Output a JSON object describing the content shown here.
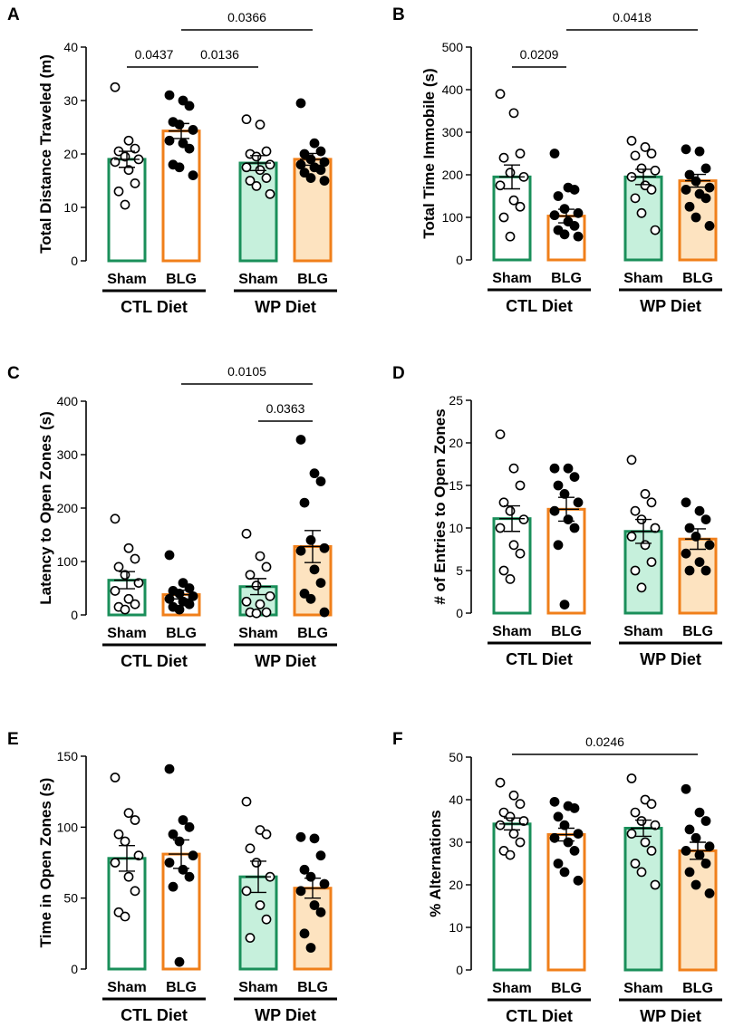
{
  "colors": {
    "sham_edge": "#1a8f5a",
    "sham_fill_wp": "#c6f0dc",
    "blg_edge": "#f07f1a",
    "blg_fill_wp": "#fde3c0",
    "axis": "#000000"
  },
  "chart_data": [
    {
      "letter": "A",
      "type": "bar",
      "ylabel": "Total Distance Traveled (m)",
      "ylim": [
        0,
        40
      ],
      "yticks": [
        0,
        10,
        20,
        30,
        40
      ],
      "categories": [
        "Sham",
        "BLG",
        "Sham",
        "BLG"
      ],
      "groups": [
        "CTL Diet",
        "WP Diet"
      ],
      "means": [
        19,
        24.3,
        18.3,
        19
      ],
      "sem": [
        1.5,
        1.4,
        1.4,
        1.1
      ],
      "points": [
        [
          32.5,
          22.5,
          21,
          20.5,
          19.5,
          19,
          18.5,
          17,
          14.5,
          13,
          10.5
        ],
        [
          31,
          30,
          29,
          26,
          25.5,
          24.5,
          22.5,
          22,
          21,
          18,
          17.5,
          16
        ],
        [
          26.5,
          25.5,
          20.5,
          20,
          19.5,
          18,
          17.5,
          17,
          15.5,
          15,
          14,
          12.5
        ],
        [
          29.5,
          22,
          20.5,
          20,
          19,
          18.5,
          18,
          17.5,
          17,
          16.5,
          15.5,
          15
        ]
      ],
      "comparisons": [
        {
          "from": 0,
          "to": 1,
          "p": "0.0437"
        },
        {
          "from": 1,
          "to": 2,
          "p": "0.0136"
        },
        {
          "from": 1,
          "to": 3,
          "p": "0.0366"
        }
      ]
    },
    {
      "letter": "B",
      "type": "bar",
      "ylabel": "Total Time Immobile (s)",
      "ylim": [
        0,
        500
      ],
      "yticks": [
        0,
        100,
        200,
        300,
        400,
        500
      ],
      "categories": [
        "Sham",
        "BLG",
        "Sham",
        "BLG"
      ],
      "groups": [
        "CTL Diet",
        "WP Diet"
      ],
      "means": [
        195,
        103,
        195,
        186
      ],
      "sem": [
        28,
        16,
        18,
        15
      ],
      "points": [
        [
          390,
          345,
          250,
          240,
          205,
          195,
          175,
          140,
          125,
          100,
          55
        ],
        [
          250,
          170,
          165,
          150,
          120,
          110,
          105,
          90,
          80,
          70,
          60,
          55
        ],
        [
          280,
          265,
          250,
          245,
          215,
          210,
          195,
          175,
          165,
          145,
          110,
          70
        ],
        [
          260,
          255,
          215,
          200,
          185,
          170,
          165,
          155,
          145,
          125,
          100,
          80
        ]
      ],
      "comparisons": [
        {
          "from": 0,
          "to": 1,
          "p": "0.0209"
        },
        {
          "from": 1,
          "to": 3,
          "p": "0.0418"
        }
      ]
    },
    {
      "letter": "C",
      "type": "bar",
      "ylabel": "Latency to Open Zones (s)",
      "ylim": [
        0,
        400
      ],
      "yticks": [
        0,
        100,
        200,
        300,
        400
      ],
      "categories": [
        "Sham",
        "BLG",
        "Sham",
        "BLG"
      ],
      "groups": [
        "CTL Diet",
        "WP Diet"
      ],
      "means": [
        65,
        38,
        53,
        128
      ],
      "sem": [
        16,
        8,
        15,
        30
      ],
      "points": [
        [
          180,
          125,
          105,
          90,
          75,
          60,
          45,
          30,
          20,
          15,
          10
        ],
        [
          112,
          60,
          50,
          45,
          40,
          35,
          30,
          25,
          20,
          15,
          10
        ],
        [
          152,
          110,
          90,
          75,
          55,
          35,
          25,
          20,
          5,
          5,
          3
        ],
        [
          328,
          265,
          250,
          210,
          140,
          125,
          120,
          85,
          60,
          40,
          30,
          5
        ]
      ],
      "comparisons": [
        {
          "from": 2,
          "to": 3,
          "p": "0.0363"
        },
        {
          "from": 1,
          "to": 3,
          "p": "0.0105"
        }
      ]
    },
    {
      "letter": "D",
      "type": "bar",
      "ylabel": "# of Entries to Open Zones",
      "ylim": [
        0,
        25
      ],
      "yticks": [
        0,
        5,
        10,
        15,
        20,
        25
      ],
      "categories": [
        "Sham",
        "BLG",
        "Sham",
        "BLG"
      ],
      "groups": [
        "CTL Diet",
        "WP Diet"
      ],
      "means": [
        11.1,
        12.2,
        9.6,
        8.7
      ],
      "sem": [
        1.5,
        1.4,
        1.4,
        1.2
      ],
      "points": [
        [
          21,
          17,
          15,
          13,
          12,
          11,
          10,
          8,
          7,
          5,
          4
        ],
        [
          17,
          17,
          16,
          15,
          14,
          13,
          12,
          11,
          10,
          8,
          1
        ],
        [
          18,
          14,
          13,
          12,
          11,
          10,
          9,
          8,
          6,
          5,
          3
        ],
        [
          13,
          12,
          11,
          10,
          9,
          8,
          7,
          6,
          5,
          5
        ]
      ],
      "comparisons": []
    },
    {
      "letter": "E",
      "type": "bar",
      "ylabel": "Time in Open Zones (s)",
      "ylim": [
        0,
        150
      ],
      "yticks": [
        0,
        50,
        100,
        150
      ],
      "categories": [
        "Sham",
        "BLG",
        "Sham",
        "BLG"
      ],
      "groups": [
        "CTL Diet",
        "WP Diet"
      ],
      "means": [
        78,
        81,
        65,
        57
      ],
      "sem": [
        9,
        10,
        11,
        7
      ],
      "points": [
        [
          135,
          110,
          105,
          95,
          90,
          80,
          75,
          65,
          55,
          40,
          37
        ],
        [
          141,
          105,
          100,
          95,
          90,
          80,
          75,
          70,
          65,
          58,
          5
        ],
        [
          118,
          98,
          95,
          85,
          75,
          65,
          55,
          45,
          35,
          22
        ],
        [
          93,
          92,
          80,
          70,
          65,
          60,
          55,
          45,
          40,
          25,
          15
        ]
      ],
      "comparisons": []
    },
    {
      "letter": "F",
      "type": "bar",
      "ylabel": "% Alternations",
      "ylim": [
        0,
        50
      ],
      "yticks": [
        0,
        10,
        20,
        30,
        40,
        50
      ],
      "categories": [
        "Sham",
        "BLG",
        "Sham",
        "BLG"
      ],
      "groups": [
        "CTL Diet",
        "WP Diet"
      ],
      "means": [
        34.3,
        31.8,
        33.3,
        28
      ],
      "sem": [
        1.4,
        1.5,
        1.9,
        2.0
      ],
      "points": [
        [
          44,
          41,
          39,
          37,
          36,
          35,
          34,
          32,
          30,
          28,
          27
        ],
        [
          39.5,
          38.5,
          38,
          36,
          34,
          32,
          31,
          30,
          28,
          25,
          23,
          21
        ],
        [
          45,
          40,
          39,
          37,
          35,
          34,
          32,
          30,
          28,
          25,
          23,
          20
        ],
        [
          42.5,
          37,
          35,
          33,
          31,
          29,
          28,
          27,
          25,
          23,
          20,
          18
        ]
      ],
      "comparisons": [
        {
          "from": 0,
          "to": 3,
          "p": "0.0246"
        }
      ]
    }
  ]
}
